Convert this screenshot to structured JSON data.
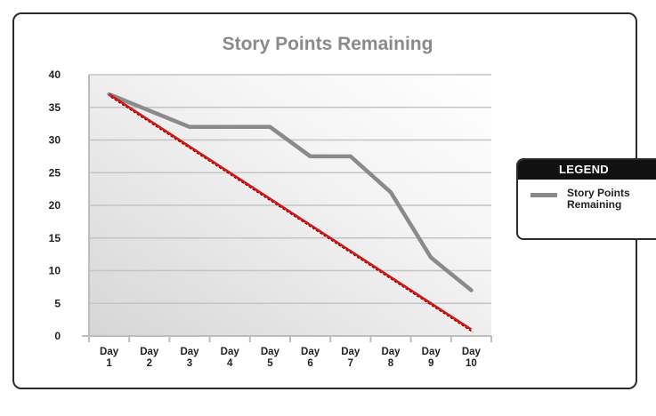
{
  "chart_data": {
    "type": "line",
    "title": "Story Points Remaining",
    "categories": [
      [
        "Day",
        "1"
      ],
      [
        "Day",
        "2"
      ],
      [
        "Day",
        "3"
      ],
      [
        "Day",
        "4"
      ],
      [
        "Day",
        "5"
      ],
      [
        "Day",
        "6"
      ],
      [
        "Day",
        "7"
      ],
      [
        "Day",
        "8"
      ],
      [
        "Day",
        "9"
      ],
      [
        "Day",
        "10"
      ]
    ],
    "series": [
      {
        "name": "Story Points Remaining",
        "values": [
          37,
          34.5,
          32,
          32,
          32,
          27.5,
          27.5,
          22,
          12,
          7
        ],
        "color": "#8a8a8a"
      },
      {
        "values": [
          37,
          33,
          29,
          25,
          21,
          17,
          13,
          9,
          5,
          1
        ],
        "color": "#e01010",
        "dashed_shadow": true
      }
    ],
    "ylim": [
      0,
      40
    ],
    "yticks": [
      0,
      5,
      10,
      15,
      20,
      25,
      30,
      35,
      40
    ],
    "grid": true,
    "legend": {
      "title": "LEGEND",
      "placement": "right",
      "entries": [
        "Story Points Remaining"
      ]
    }
  }
}
